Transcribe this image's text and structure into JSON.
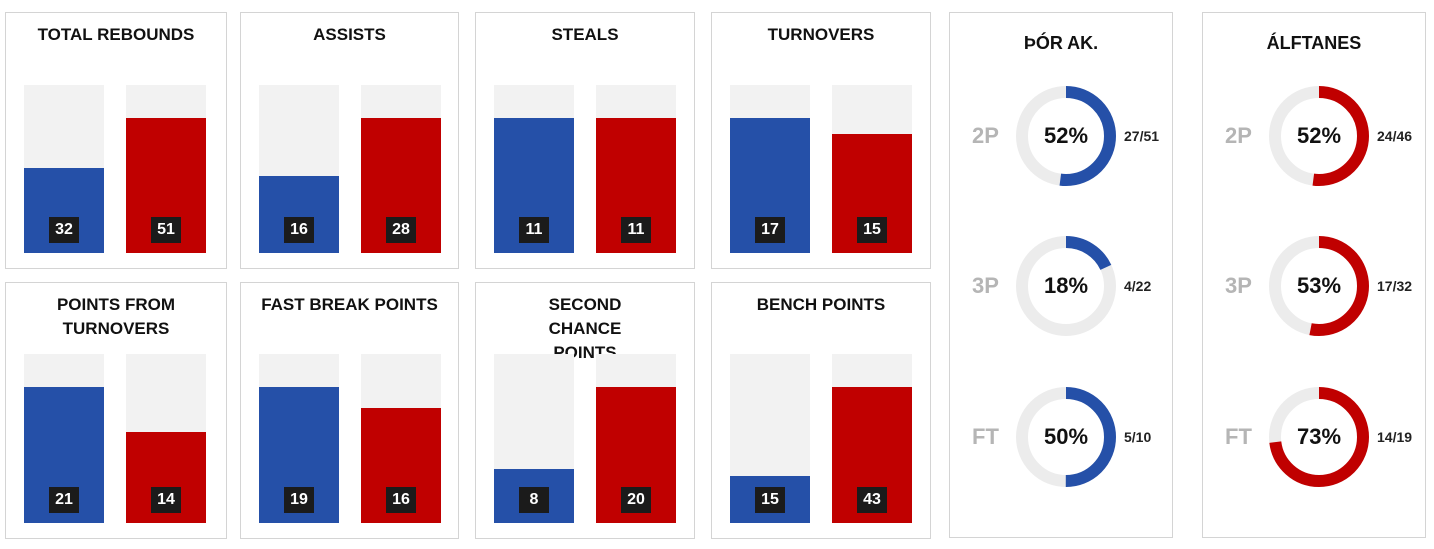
{
  "colors": {
    "team_a": "#2550a8",
    "team_b": "#c00000",
    "track": "#f2f2f2",
    "ring_track": "#ececec"
  },
  "chart_data": [
    {
      "type": "bar",
      "title": "TOTAL REBOUNDS",
      "categories": [
        "Þór Ak.",
        "Álftanes"
      ],
      "values": [
        32,
        51
      ],
      "ylim": [
        0,
        51
      ]
    },
    {
      "type": "bar",
      "title": "ASSISTS",
      "categories": [
        "Þór Ak.",
        "Álftanes"
      ],
      "values": [
        16,
        28
      ],
      "ylim": [
        0,
        28
      ]
    },
    {
      "type": "bar",
      "title": "STEALS",
      "categories": [
        "Þór Ak.",
        "Álftanes"
      ],
      "values": [
        11,
        11
      ],
      "ylim": [
        0,
        11
      ]
    },
    {
      "type": "bar",
      "title": "TURNOVERS",
      "categories": [
        "Þór Ak.",
        "Álftanes"
      ],
      "values": [
        17,
        15
      ],
      "ylim": [
        0,
        17
      ]
    },
    {
      "type": "bar",
      "title": "POINTS FROM TURNOVERS",
      "categories": [
        "Þór Ak.",
        "Álftanes"
      ],
      "values": [
        21,
        14
      ],
      "ylim": [
        0,
        21
      ]
    },
    {
      "type": "bar",
      "title": "FAST BREAK POINTS",
      "categories": [
        "Þór Ak.",
        "Álftanes"
      ],
      "values": [
        19,
        16
      ],
      "ylim": [
        0,
        19
      ]
    },
    {
      "type": "bar",
      "title": "SECOND CHANCE POINTS",
      "categories": [
        "Þór Ak.",
        "Álftanes"
      ],
      "values": [
        8,
        20
      ],
      "ylim": [
        0,
        20
      ]
    },
    {
      "type": "bar",
      "title": "BENCH POINTS",
      "categories": [
        "Þór Ak.",
        "Álftanes"
      ],
      "values": [
        15,
        43
      ],
      "ylim": [
        0,
        43
      ]
    },
    {
      "type": "pie",
      "title": "ÞÓR AK.",
      "rows": [
        {
          "label": "2P",
          "pct": 52,
          "pct_text": "52%",
          "made": "27/51"
        },
        {
          "label": "3P",
          "pct": 18,
          "pct_text": "18%",
          "made": "4/22"
        },
        {
          "label": "FT",
          "pct": 50,
          "pct_text": "50%",
          "made": "5/10"
        }
      ]
    },
    {
      "type": "pie",
      "title": "ÁLFTANES",
      "rows": [
        {
          "label": "2P",
          "pct": 52,
          "pct_text": "52%",
          "made": "24/46"
        },
        {
          "label": "3P",
          "pct": 53,
          "pct_text": "53%",
          "made": "17/32"
        },
        {
          "label": "FT",
          "pct": 73,
          "pct_text": "73%",
          "made": "14/19"
        }
      ]
    }
  ]
}
